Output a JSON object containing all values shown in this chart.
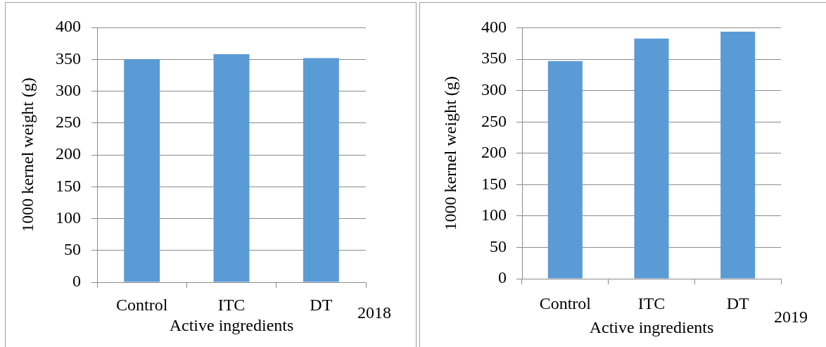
{
  "chart_data": [
    {
      "type": "bar",
      "xlabel": "Active ingredients",
      "ylabel": "1000 kernel weight (g)",
      "categories": [
        "Control",
        "ITC",
        "DT"
      ],
      "values": [
        350,
        358,
        352
      ],
      "color": "#5b9bd5",
      "ylim": [
        0,
        400
      ],
      "yticks": [
        0,
        50,
        100,
        150,
        200,
        250,
        300,
        350,
        400
      ],
      "grid": "y",
      "annotations": [
        "2018"
      ]
    },
    {
      "type": "bar",
      "xlabel": "Active ingredients",
      "ylabel": "1000 kernel weight (g)",
      "categories": [
        "Control",
        "ITC",
        "DT"
      ],
      "values": [
        347,
        383,
        394
      ],
      "color": "#5b9bd5",
      "ylim": [
        0,
        400
      ],
      "yticks": [
        0,
        50,
        100,
        150,
        200,
        250,
        300,
        350,
        400
      ],
      "grid": "y",
      "annotations": [
        "2019"
      ]
    }
  ]
}
